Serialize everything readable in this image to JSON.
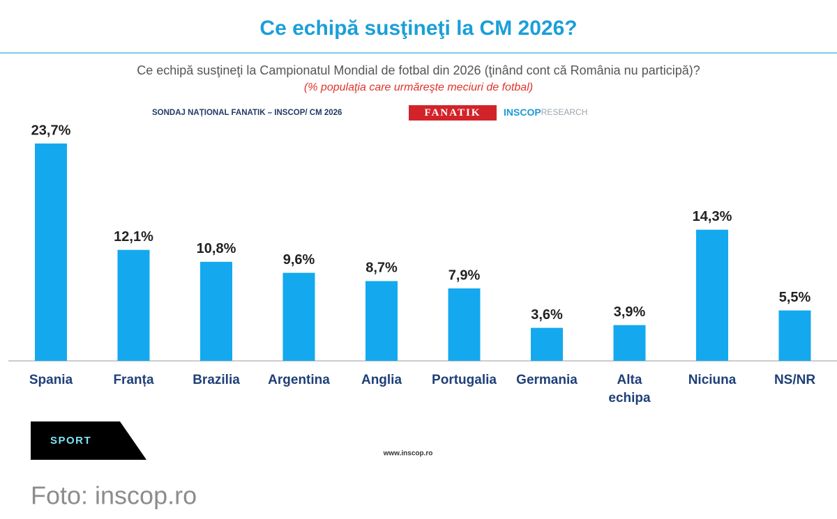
{
  "chart_data": {
    "type": "bar",
    "title": "Ce echipă susţineţi la CM 2026?",
    "subtitle": "Ce echipă susţineţi la Campionatul Mondial de fotbal din 2026 (ţinând cont că România nu participă)?",
    "note": "(% populaţia care urmăreşte meciuri de fotbal)",
    "source": "SONDAJ NAȚIONAL FANATIK – INSCOP/ CM 2026",
    "logos": [
      "FANATIK",
      "INSCOP",
      "RESEARCH"
    ],
    "website": "www.inscop.ro",
    "categories": [
      "Spania",
      "Franța",
      "Brazilia",
      "Argentina",
      "Anglia",
      "Portugalia",
      "Germania",
      "Alta\nechipa",
      "Niciuna",
      "NS/NR"
    ],
    "values": [
      23.7,
      12.1,
      10.8,
      9.6,
      8.7,
      7.9,
      3.6,
      3.9,
      14.3,
      5.5
    ],
    "value_labels": [
      "23,7%",
      "12,1%",
      "10,8%",
      "9,6%",
      "8,7%",
      "7,9%",
      "3,6%",
      "3,9%",
      "14,3%",
      "5,5%"
    ],
    "color": "#14a9ee"
  },
  "badge": "SPORT",
  "caption": "Foto: inscop.ro"
}
